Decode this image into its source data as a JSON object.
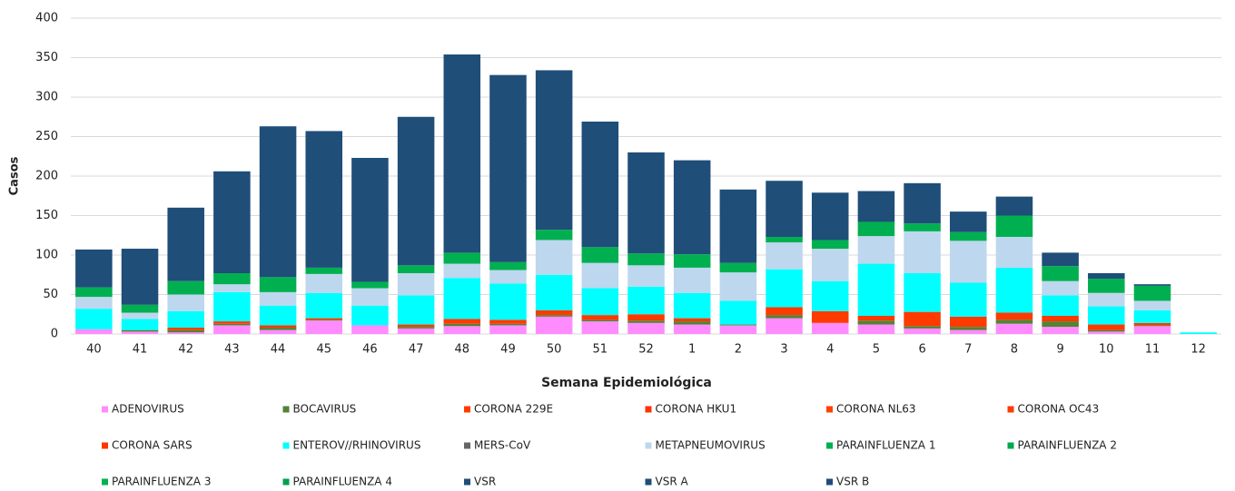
{
  "chart_data": {
    "type": "stacked-bar",
    "x_label": "Semana Epidemiológica",
    "y_label": "Casos",
    "categories": [
      "40",
      "41",
      "42",
      "43",
      "44",
      "45",
      "46",
      "47",
      "48",
      "49",
      "50",
      "51",
      "52",
      "1",
      "2",
      "3",
      "4",
      "5",
      "6",
      "7",
      "8",
      "9",
      "10",
      "11",
      "12"
    ],
    "ylim": [
      0,
      400
    ],
    "yticks": [
      0,
      50,
      100,
      150,
      200,
      250,
      300,
      350,
      400
    ],
    "grid": true,
    "series": [
      {
        "name": "ADENOVIRUS",
        "color": "#ff8cff",
        "values": [
          6,
          3,
          2,
          11,
          5,
          17,
          11,
          7,
          10,
          11,
          22,
          16,
          14,
          12,
          11,
          20,
          14,
          12,
          7,
          5,
          13,
          9,
          3,
          10,
          0
        ]
      },
      {
        "name": "BOCAVIRUS",
        "color": "#548235",
        "values": [
          0,
          2,
          3,
          2,
          3,
          1,
          0,
          2,
          3,
          2,
          2,
          2,
          3,
          4,
          1,
          4,
          0,
          5,
          3,
          4,
          5,
          7,
          2,
          1,
          0
        ]
      },
      {
        "name": "CORONA 229E",
        "color": "#ff3c00",
        "values": [
          0,
          0,
          0,
          0,
          0,
          0,
          0,
          0,
          0,
          0,
          0,
          0,
          0,
          0,
          0,
          0,
          0,
          0,
          0,
          0,
          0,
          0,
          0,
          0,
          0
        ]
      },
      {
        "name": "CORONA HKU1",
        "color": "#ff3300",
        "values": [
          0,
          0,
          0,
          0,
          0,
          0,
          0,
          0,
          0,
          0,
          0,
          0,
          0,
          0,
          0,
          0,
          0,
          0,
          0,
          0,
          0,
          0,
          0,
          0,
          0
        ]
      },
      {
        "name": "CORONA NL63",
        "color": "#ff4000",
        "values": [
          0,
          0,
          0,
          0,
          0,
          0,
          0,
          0,
          0,
          0,
          0,
          0,
          0,
          0,
          0,
          0,
          0,
          0,
          0,
          0,
          0,
          0,
          0,
          0,
          0
        ]
      },
      {
        "name": "CORONA OC43",
        "color": "#ff3a00",
        "values": [
          0,
          0,
          3,
          3,
          3,
          2,
          0,
          3,
          6,
          5,
          6,
          6,
          8,
          4,
          0,
          10,
          15,
          6,
          18,
          13,
          9,
          7,
          7,
          3,
          0
        ]
      },
      {
        "name": "CORONA SARS",
        "color": "#ff3500",
        "values": [
          0,
          0,
          0,
          0,
          0,
          0,
          0,
          0,
          0,
          0,
          0,
          0,
          0,
          0,
          0,
          0,
          0,
          0,
          0,
          0,
          0,
          0,
          0,
          0,
          0
        ]
      },
      {
        "name": "ENTEROV//RHINOVIRUS",
        "color": "#00ffff",
        "values": [
          26,
          14,
          21,
          37,
          25,
          32,
          25,
          37,
          52,
          46,
          45,
          34,
          35,
          32,
          30,
          48,
          38,
          66,
          49,
          43,
          57,
          26,
          23,
          16,
          2
        ]
      },
      {
        "name": "MERS-CoV",
        "color": "#666666",
        "values": [
          0,
          0,
          0,
          0,
          0,
          0,
          0,
          0,
          0,
          0,
          0,
          0,
          0,
          0,
          0,
          0,
          0,
          0,
          0,
          0,
          0,
          0,
          0,
          0,
          0
        ]
      },
      {
        "name": "METAPNEUMOVIRUS",
        "color": "#bdd7ee",
        "values": [
          15,
          8,
          21,
          10,
          17,
          24,
          22,
          28,
          18,
          17,
          44,
          32,
          27,
          32,
          36,
          34,
          41,
          35,
          53,
          53,
          39,
          18,
          17,
          12,
          0
        ]
      },
      {
        "name": "PARAINFLUENZA 1",
        "color": "#00b050",
        "values": [
          0,
          0,
          0,
          0,
          0,
          0,
          0,
          0,
          0,
          0,
          0,
          0,
          0,
          0,
          0,
          0,
          0,
          0,
          0,
          0,
          0,
          0,
          0,
          0,
          0
        ]
      },
      {
        "name": "PARAINFLUENZA 2",
        "color": "#00a84a",
        "values": [
          0,
          0,
          0,
          0,
          0,
          0,
          0,
          0,
          0,
          0,
          0,
          0,
          0,
          0,
          0,
          0,
          0,
          0,
          0,
          0,
          0,
          0,
          0,
          0,
          0
        ]
      },
      {
        "name": "PARAINFLUENZA 3",
        "color": "#00b050",
        "values": [
          12,
          10,
          17,
          14,
          19,
          8,
          8,
          10,
          14,
          10,
          13,
          20,
          15,
          17,
          12,
          7,
          11,
          18,
          10,
          11,
          27,
          19,
          18,
          19,
          0
        ]
      },
      {
        "name": "PARAINFLUENZA 4",
        "color": "#00a050",
        "values": [
          0,
          0,
          0,
          0,
          0,
          0,
          0,
          0,
          0,
          0,
          0,
          0,
          0,
          0,
          0,
          0,
          0,
          0,
          0,
          0,
          0,
          0,
          0,
          0,
          0
        ]
      },
      {
        "name": "VSR",
        "color": "#1f4e79",
        "values": [
          48,
          71,
          93,
          129,
          191,
          173,
          157,
          188,
          251,
          237,
          202,
          159,
          128,
          119,
          93,
          71,
          60,
          39,
          51,
          26,
          24,
          17,
          7,
          2,
          0
        ]
      },
      {
        "name": "VSR A",
        "color": "#1f4e78",
        "values": [
          0,
          0,
          0,
          0,
          0,
          0,
          0,
          0,
          0,
          0,
          0,
          0,
          0,
          0,
          0,
          0,
          0,
          0,
          0,
          0,
          0,
          0,
          0,
          0,
          0
        ]
      },
      {
        "name": "VSR B",
        "color": "#1f4d79",
        "values": [
          0,
          0,
          0,
          0,
          0,
          0,
          0,
          0,
          0,
          0,
          0,
          0,
          0,
          0,
          0,
          0,
          0,
          0,
          0,
          0,
          0,
          0,
          0,
          0,
          0
        ]
      }
    ]
  }
}
